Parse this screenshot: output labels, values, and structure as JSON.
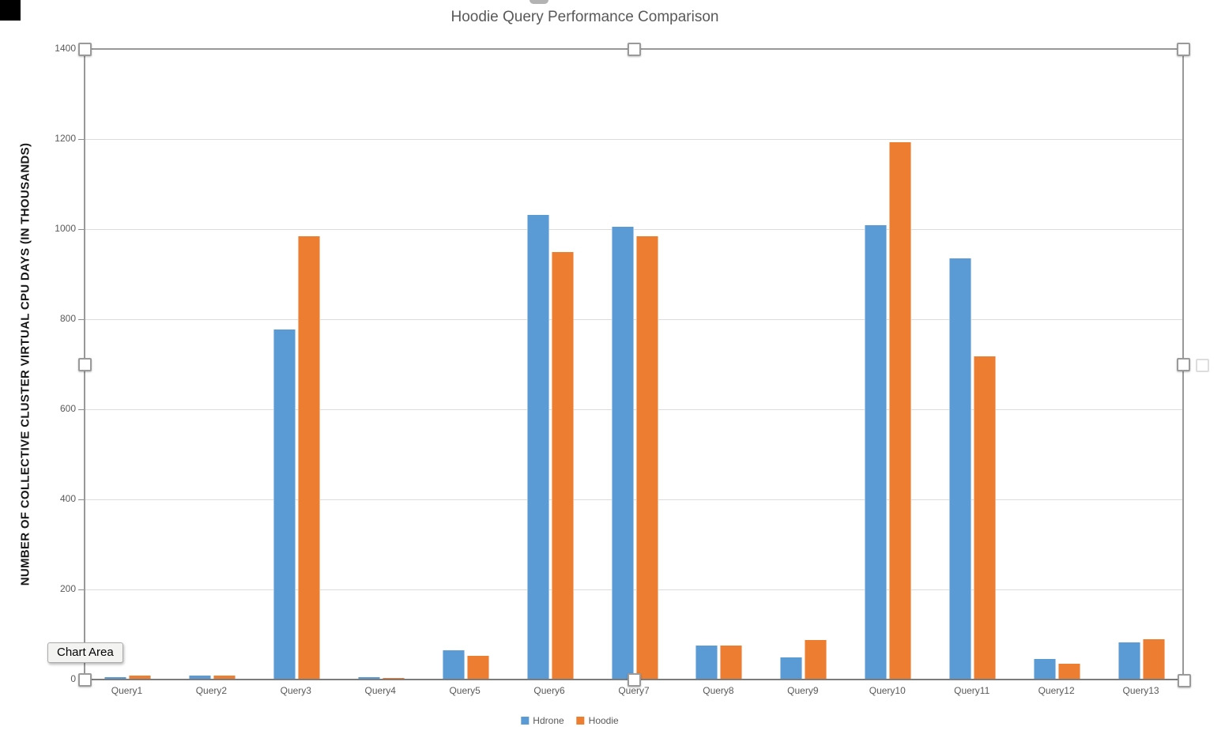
{
  "tooltip": {
    "label": "Chart Area"
  },
  "colors": {
    "hdrone": "#5B9BD5",
    "hoodie": "#ED7D31",
    "gridline": "#DCDCDC",
    "axis_text": "#595959",
    "title_text": "#595959"
  },
  "chart_data": {
    "type": "bar",
    "title": "Hoodie Query Performance Comparison",
    "ylabel": "NUMBER OF COLLECTIVE CLUSTER VIRTUAL CPU DAYS (IN THOUSANDS)",
    "xlabel": "",
    "categories": [
      "Query1",
      "Query2",
      "Query3",
      "Query4",
      "Query5",
      "Query6",
      "Query7",
      "Query8",
      "Query9",
      "Query10",
      "Query11",
      "Query12",
      "Query13"
    ],
    "series": [
      {
        "name": "Hdrone",
        "color": "#5B9BD5",
        "values": [
          5,
          9,
          777,
          5,
          65,
          1031,
          1005,
          75,
          49,
          1009,
          935,
          45,
          82
        ]
      },
      {
        "name": "Hoodie",
        "color": "#ED7D31",
        "values": [
          8,
          8,
          985,
          4,
          53,
          950,
          985,
          75,
          88,
          1193,
          718,
          35,
          89
        ]
      }
    ],
    "ylim": [
      0,
      1400
    ],
    "yticks": [
      0,
      200,
      400,
      600,
      800,
      1000,
      1200,
      1400
    ],
    "grid": true,
    "legend_position": "bottom"
  }
}
